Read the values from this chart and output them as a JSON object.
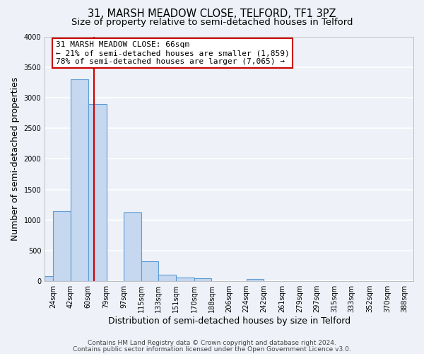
{
  "title": "31, MARSH MEADOW CLOSE, TELFORD, TF1 3PZ",
  "subtitle": "Size of property relative to semi-detached houses in Telford",
  "xlabel": "Distribution of semi-detached houses by size in Telford",
  "ylabel": "Number of semi-detached properties",
  "bins_data": [
    [
      15,
      24,
      80
    ],
    [
      24,
      42,
      1150
    ],
    [
      42,
      60,
      3300
    ],
    [
      60,
      79,
      2900
    ],
    [
      79,
      97,
      0
    ],
    [
      97,
      115,
      1130
    ],
    [
      115,
      133,
      330
    ],
    [
      133,
      151,
      110
    ],
    [
      151,
      170,
      60
    ],
    [
      170,
      188,
      45
    ],
    [
      188,
      206,
      0
    ],
    [
      206,
      224,
      0
    ],
    [
      224,
      242,
      35
    ]
  ],
  "property_line_x": 66,
  "annotation_title": "31 MARSH MEADOW CLOSE: 66sqm",
  "annotation_line1": "← 21% of semi-detached houses are smaller (1,859)",
  "annotation_line2": "78% of semi-detached houses are larger (7,065) →",
  "ylim": [
    0,
    4000
  ],
  "yticks": [
    0,
    500,
    1000,
    1500,
    2000,
    2500,
    3000,
    3500,
    4000
  ],
  "xtick_labels": [
    "24sqm",
    "42sqm",
    "60sqm",
    "79sqm",
    "97sqm",
    "115sqm",
    "133sqm",
    "151sqm",
    "170sqm",
    "188sqm",
    "206sqm",
    "224sqm",
    "242sqm",
    "261sqm",
    "279sqm",
    "297sqm",
    "315sqm",
    "333sqm",
    "352sqm",
    "370sqm",
    "388sqm"
  ],
  "xtick_positions": [
    24,
    42,
    60,
    79,
    97,
    115,
    133,
    151,
    170,
    188,
    206,
    224,
    242,
    261,
    279,
    297,
    315,
    333,
    352,
    370,
    388
  ],
  "xlim": [
    15,
    397
  ],
  "bar_color": "#c5d8f0",
  "bar_edge_color": "#5b9bd5",
  "background_color": "#eef2f8",
  "grid_color": "#ffffff",
  "red_line_color": "#cc0000",
  "annotation_box_color": "#ffffff",
  "annotation_box_edge": "#cc0000",
  "footer_line1": "Contains HM Land Registry data © Crown copyright and database right 2024.",
  "footer_line2": "Contains public sector information licensed under the Open Government Licence v3.0.",
  "title_fontsize": 10.5,
  "subtitle_fontsize": 9.5,
  "axis_label_fontsize": 9,
  "tick_fontsize": 7,
  "annotation_fontsize": 8,
  "footer_fontsize": 6.5
}
